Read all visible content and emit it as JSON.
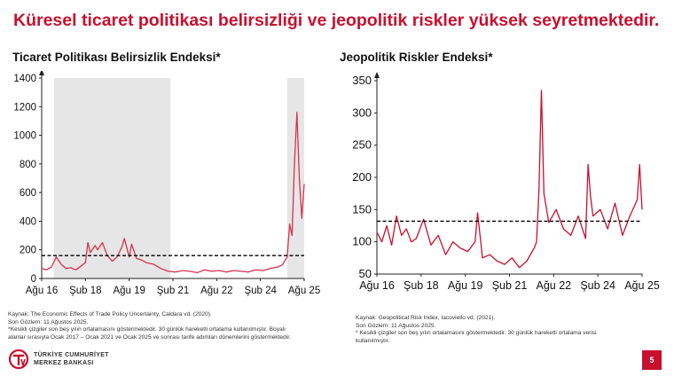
{
  "page": {
    "title": "Küresel ticaret politikası belirsizliği ve jeopolitik riskler yüksek seyretmektedir.",
    "page_number": "5",
    "logo_line1": "TÜRKİYE CUMHURİYET",
    "logo_line2": "MERKEZ BANKASI",
    "accent_color": "#c8102e"
  },
  "chart_data": [
    {
      "type": "line",
      "title": "Ticaret Politikası Belirsizlik Endeksi*",
      "x_tick_labels": [
        "Ağu 16",
        "Şub 18",
        "Ağu 19",
        "Şub 21",
        "Ağu 22",
        "Şub 24",
        "Ağu 25"
      ],
      "x_range": [
        "2016-08",
        "2025-08"
      ],
      "ylim": [
        0,
        1400
      ],
      "y_ticks": [
        0,
        200,
        400,
        600,
        800,
        1000,
        1200,
        1400
      ],
      "grid": false,
      "line_color": "#d6334f",
      "reference_line": {
        "value": 160,
        "style": "dashed",
        "color": "#000000"
      },
      "shaded_periods": [
        [
          "2017-01",
          "2021-01"
        ],
        [
          "2025-01",
          "2025-08"
        ]
      ],
      "series": [
        {
          "x": [
            "2016-08",
            "2016-10",
            "2016-12",
            "2017-02",
            "2017-04",
            "2017-06",
            "2017-08",
            "2017-10",
            "2017-12",
            "2018-02",
            "2018-03",
            "2018-04",
            "2018-06",
            "2018-07",
            "2018-09",
            "2018-11",
            "2019-01",
            "2019-03",
            "2019-05",
            "2019-06",
            "2019-08",
            "2019-09",
            "2019-11",
            "2020-01",
            "2020-03",
            "2020-06",
            "2020-09",
            "2020-12",
            "2021-03",
            "2021-06",
            "2021-09",
            "2021-12",
            "2022-03",
            "2022-06",
            "2022-09",
            "2022-12",
            "2023-03",
            "2023-06",
            "2023-09",
            "2023-12",
            "2024-03",
            "2024-06",
            "2024-09",
            "2024-11",
            "2025-01",
            "2025-02",
            "2025-03",
            "2025-04",
            "2025-05",
            "2025-06",
            "2025-07",
            "2025-08"
          ],
          "values": [
            70,
            60,
            80,
            150,
            100,
            70,
            75,
            60,
            85,
            110,
            250,
            180,
            230,
            200,
            250,
            160,
            120,
            150,
            220,
            280,
            150,
            240,
            140,
            130,
            110,
            100,
            70,
            50,
            45,
            55,
            50,
            40,
            60,
            50,
            55,
            45,
            55,
            50,
            45,
            60,
            55,
            70,
            80,
            95,
            150,
            380,
            300,
            800,
            1160,
            700,
            420,
            660
          ]
        }
      ]
    },
    {
      "type": "line",
      "title": "Jeopolitik Riskler Endeksi*",
      "x_tick_labels": [
        "Ağu 16",
        "Şub 18",
        "Ağu 19",
        "Şub 21",
        "Ağu 22",
        "Şub 24",
        "Ağu 25"
      ],
      "x_range": [
        "2016-08",
        "2025-08"
      ],
      "ylim": [
        50,
        350
      ],
      "y_ticks": [
        50,
        100,
        150,
        200,
        250,
        300,
        350
      ],
      "grid": false,
      "line_color": "#c8102e",
      "reference_line": {
        "value": 132,
        "style": "dashed",
        "color": "#000000"
      },
      "series": [
        {
          "x": [
            "2016-08",
            "2016-10",
            "2016-12",
            "2017-02",
            "2017-04",
            "2017-06",
            "2017-08",
            "2017-10",
            "2017-12",
            "2018-03",
            "2018-06",
            "2018-09",
            "2018-12",
            "2019-03",
            "2019-06",
            "2019-09",
            "2019-12",
            "2020-01",
            "2020-03",
            "2020-06",
            "2020-09",
            "2020-12",
            "2021-03",
            "2021-06",
            "2021-09",
            "2021-12",
            "2022-01",
            "2022-02",
            "2022-03",
            "2022-04",
            "2022-06",
            "2022-09",
            "2022-12",
            "2023-03",
            "2023-06",
            "2023-09",
            "2023-10",
            "2023-11",
            "2023-12",
            "2024-03",
            "2024-06",
            "2024-09",
            "2024-12",
            "2025-03",
            "2025-06",
            "2025-07",
            "2025-08"
          ],
          "values": [
            115,
            100,
            125,
            95,
            140,
            110,
            120,
            100,
            105,
            135,
            95,
            110,
            80,
            100,
            90,
            85,
            100,
            145,
            75,
            80,
            70,
            65,
            75,
            60,
            70,
            90,
            100,
            180,
            335,
            175,
            130,
            150,
            120,
            110,
            140,
            105,
            220,
            170,
            140,
            150,
            120,
            160,
            110,
            140,
            165,
            220,
            150
          ]
        }
      ]
    }
  ],
  "sources": {
    "left": [
      "Kaynak: The Economic Effects of Trade Policy Uncertainty, Caldara vd. (2020).",
      "Son Gözlem: 11 Ağustos 2025.",
      "*Kesikli çizgiler son beş yılın ortalamasını göstermektedir. 30 günlük hareketli ortalama kullanılmıştır. Boyalı",
      "alanlar sırasıyla Ocak 2017 – Ocak 2021 ve Ocak 2025 ve sonrası tarife adımları dönemlerini göstermektedir."
    ],
    "right": [
      "Kaynak: Geopolitical Risk Index, Iacoviello vd. (2021).",
      "Son Gözlem: 11 Ağustos 2025.",
      "* Kesikli çizgiler son beş yılın ortalamasını göstermektedir. 30 günlük hareketli ortalama verisi",
      "kullanılmıştır."
    ]
  }
}
